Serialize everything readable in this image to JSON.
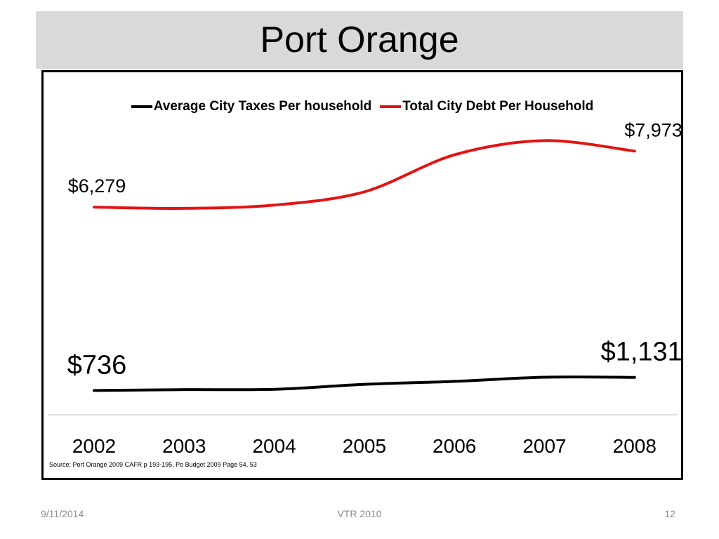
{
  "slide": {
    "title": "Port Orange",
    "footer_date": "9/11/2014",
    "footer_center": "VTR 2010",
    "page_number": "12"
  },
  "chart_data": {
    "type": "line",
    "title": "",
    "xlabel": "",
    "ylabel": "",
    "categories": [
      "2002",
      "2003",
      "2004",
      "2005",
      "2006",
      "2007",
      "2008"
    ],
    "ylim": [
      0,
      8700
    ],
    "grid": false,
    "legend_position": "top",
    "series": [
      {
        "name": "Average City Taxes Per household",
        "color": "#000000",
        "values": [
          736,
          760,
          770,
          920,
          1010,
          1135,
          1131
        ]
      },
      {
        "name": "Total City Debt Per Household",
        "color": "#e31313",
        "values": [
          6279,
          6240,
          6340,
          6740,
          7860,
          8290,
          7973
        ]
      }
    ],
    "annotations": [
      {
        "series": 0,
        "index": 0,
        "text": "$736",
        "size": "large"
      },
      {
        "series": 0,
        "index": 6,
        "text": "$1,131",
        "size": "large"
      },
      {
        "series": 1,
        "index": 0,
        "text": "$6,279",
        "size": "medium"
      },
      {
        "series": 1,
        "index": 6,
        "text": "$7,973",
        "size": "medium"
      }
    ],
    "source": "Source: Port Orange 2009 CAFR p 193-195, Po Budget 2009 Page 54, 53"
  }
}
